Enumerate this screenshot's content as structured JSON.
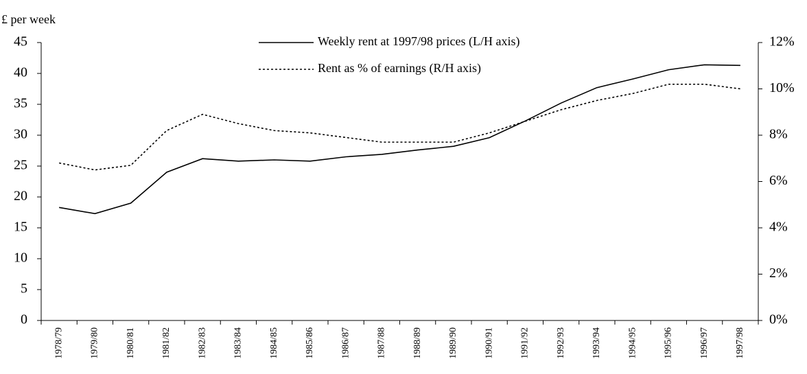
{
  "chart_data": {
    "type": "line",
    "y_axis_label": "£ per week",
    "categories": [
      "1978/79",
      "1979/80",
      "1980/81",
      "1981/82",
      "1982/83",
      "1983/84",
      "1984/85",
      "1985/86",
      "1986/87",
      "1987/88",
      "1988/89",
      "1989/90",
      "1990/91",
      "1991/92",
      "1992/93",
      "1993/94",
      "1994/95",
      "1995/96",
      "1996/97",
      "1997/98"
    ],
    "series": [
      {
        "name": "Weekly rent at 1997/98 prices (L/H axis)",
        "color": "#000000",
        "style": "solid",
        "values": [
          18.3,
          17.3,
          19.0,
          24.0,
          26.2,
          25.8,
          26.0,
          25.8,
          26.5,
          26.9,
          27.6,
          28.2,
          29.6,
          32.3,
          35.2,
          37.7,
          39.1,
          40.6,
          41.4,
          41.3
        ]
      },
      {
        "name": "Rent as % of earnings (R/H axis)",
        "color": "#000000",
        "style": "dotted",
        "axis": "y2",
        "values": [
          6.8,
          6.5,
          6.7,
          8.2,
          8.9,
          8.5,
          8.2,
          8.1,
          7.9,
          7.7,
          7.7,
          7.7,
          8.1,
          8.6,
          9.1,
          9.5,
          9.8,
          10.2,
          10.2,
          10.0
        ]
      }
    ],
    "ylim": [
      0,
      45
    ],
    "yticks": [
      0,
      5,
      10,
      15,
      20,
      25,
      30,
      35,
      40,
      45
    ],
    "y2lim": [
      0,
      12
    ],
    "y2ticks": [
      {
        "value": 0,
        "label": "0%"
      },
      {
        "value": 2,
        "label": "2%"
      },
      {
        "value": 4,
        "label": "4%"
      },
      {
        "value": 6,
        "label": "6%"
      },
      {
        "value": 8,
        "label": "8%"
      },
      {
        "value": 10,
        "label": "10%"
      },
      {
        "value": 12,
        "label": "12%"
      }
    ],
    "grid": false
  }
}
